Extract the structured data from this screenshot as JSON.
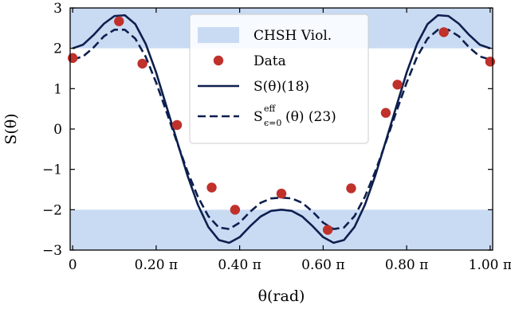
{
  "chart_data": {
    "type": "line",
    "xlabel": "θ(rad)",
    "ylabel": "S(θ)",
    "xlim": [
      -0.006,
      1.006
    ],
    "ylim": [
      -3,
      3
    ],
    "x_unit": "π",
    "x_ticks": [
      0,
      0.2,
      0.4,
      0.6,
      0.8,
      1.0
    ],
    "x_tick_labels": [
      "0",
      "0.20 π",
      "0.40 π",
      "0.60 π",
      "0.80 π",
      "1.00 π"
    ],
    "y_ticks": [
      -3,
      -2,
      -1,
      0,
      1,
      2,
      3
    ],
    "y_tick_labels": [
      "−3",
      "−2",
      "−1",
      "0",
      "1",
      "2",
      "3"
    ],
    "grid": false,
    "legend_position": "top-center",
    "colors": {
      "band": "#c9dbf3",
      "line": "#0d1f4e",
      "marker": "#c0312b"
    },
    "bands": [
      {
        "name": "CHSH Viol.",
        "y_ranges": [
          [
            2,
            3
          ],
          [
            -3,
            -2
          ]
        ]
      }
    ],
    "series": [
      {
        "name": "Data",
        "kind": "scatter",
        "x": [
          0.0,
          0.111,
          0.167,
          0.25,
          0.333,
          0.389,
          0.5,
          0.611,
          0.667,
          0.75,
          0.778,
          0.889,
          1.0
        ],
        "y": [
          1.76,
          2.67,
          1.62,
          0.1,
          -1.45,
          -2.0,
          -1.6,
          -2.5,
          -1.47,
          0.4,
          1.1,
          2.4,
          1.67
        ]
      },
      {
        "name": "S(θ)(18)",
        "kind": "solid",
        "x": [
          0.0,
          0.025,
          0.05,
          0.075,
          0.1,
          0.125,
          0.15,
          0.175,
          0.2,
          0.225,
          0.25,
          0.275,
          0.3,
          0.325,
          0.35,
          0.375,
          0.4,
          0.425,
          0.45,
          0.475,
          0.5,
          0.525,
          0.55,
          0.575,
          0.6,
          0.625,
          0.65,
          0.675,
          0.7,
          0.725,
          0.75,
          0.775,
          0.8,
          0.825,
          0.85,
          0.875,
          0.9,
          0.925,
          0.95,
          0.975,
          1.0
        ],
        "y": [
          2.0,
          2.09,
          2.33,
          2.61,
          2.8,
          2.82,
          2.6,
          2.11,
          1.4,
          0.55,
          -0.3,
          -1.15,
          -1.88,
          -2.43,
          -2.75,
          -2.82,
          -2.68,
          -2.41,
          -2.17,
          -2.03,
          -2.0,
          -2.03,
          -2.17,
          -2.41,
          -2.68,
          -2.82,
          -2.75,
          -2.43,
          -1.88,
          -1.15,
          -0.3,
          0.55,
          1.4,
          2.11,
          2.6,
          2.82,
          2.8,
          2.61,
          2.33,
          2.09,
          2.0
        ]
      },
      {
        "name": "S_{ε=0}^{eff}(θ) (23)",
        "kind": "dashed",
        "x": [
          0.0,
          0.025,
          0.05,
          0.075,
          0.1,
          0.125,
          0.15,
          0.175,
          0.2,
          0.225,
          0.25,
          0.275,
          0.3,
          0.325,
          0.35,
          0.375,
          0.4,
          0.425,
          0.45,
          0.475,
          0.5,
          0.525,
          0.55,
          0.575,
          0.6,
          0.625,
          0.65,
          0.675,
          0.7,
          0.725,
          0.75,
          0.775,
          0.8,
          0.825,
          0.85,
          0.875,
          0.9,
          0.925,
          0.95,
          0.975,
          1.0
        ],
        "y": [
          1.72,
          1.8,
          2.02,
          2.3,
          2.46,
          2.46,
          2.24,
          1.79,
          1.15,
          0.42,
          -0.33,
          -1.05,
          -1.68,
          -2.16,
          -2.44,
          -2.48,
          -2.32,
          -2.05,
          -1.83,
          -1.72,
          -1.7,
          -1.72,
          -1.83,
          -2.05,
          -2.32,
          -2.48,
          -2.44,
          -2.16,
          -1.68,
          -1.05,
          -0.33,
          0.42,
          1.15,
          1.79,
          2.24,
          2.46,
          2.46,
          2.3,
          2.02,
          1.8,
          1.72
        ]
      }
    ],
    "legend": [
      {
        "label": "CHSH Viol.",
        "kind": "band"
      },
      {
        "label": "Data",
        "kind": "marker"
      },
      {
        "label": "S(θ)(18)",
        "kind": "solid"
      },
      {
        "label_main": "S",
        "label_sup": "eff",
        "label_sub": "ϵ=0",
        "label_rest": "(θ) (23)",
        "kind": "dashed"
      }
    ]
  }
}
